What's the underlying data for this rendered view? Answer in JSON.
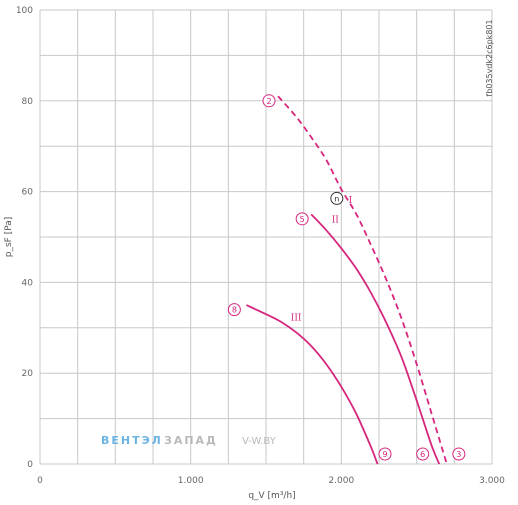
{
  "chart_data": {
    "type": "line",
    "xlabel": "q_V [m³/h]",
    "ylabel": "p_sF [Pa]",
    "xlim": [
      0,
      3000
    ],
    "ylim": [
      0,
      100
    ],
    "x_ticks": [
      {
        "value": 0,
        "label": "0"
      },
      {
        "value": 1000,
        "label": "1.000"
      },
      {
        "value": 2000,
        "label": "2.000"
      },
      {
        "value": 3000,
        "label": "3.000"
      }
    ],
    "y_ticks": [
      {
        "value": 0,
        "label": "0"
      },
      {
        "value": 20,
        "label": "20"
      },
      {
        "value": 40,
        "label": "40"
      },
      {
        "value": 60,
        "label": "60"
      },
      {
        "value": 80,
        "label": "80"
      },
      {
        "value": 100,
        "label": "100"
      }
    ],
    "grid": true,
    "series": [
      {
        "name": "I",
        "style": "dashed",
        "color": "#d6267e",
        "x": [
          1580,
          1700,
          1800,
          1900,
          2000,
          2100,
          2200,
          2300,
          2400,
          2500,
          2600,
          2700
        ],
        "y": [
          81,
          76.5,
          72,
          67,
          60.5,
          55,
          48,
          40.5,
          32,
          22,
          11,
          0
        ]
      },
      {
        "name": "II",
        "style": "solid",
        "color": "#d6267e",
        "x": [
          1800,
          1900,
          2000,
          2100,
          2200,
          2300,
          2400,
          2500,
          2600,
          2650
        ],
        "y": [
          55,
          51.5,
          47.5,
          43,
          37.5,
          31,
          23.5,
          14,
          4,
          0
        ]
      },
      {
        "name": "III",
        "style": "solid",
        "color": "#d6267e",
        "x": [
          1370,
          1500,
          1600,
          1700,
          1800,
          1900,
          2000,
          2100,
          2200,
          2240
        ],
        "y": [
          35,
          33,
          31.3,
          29,
          26,
          22,
          17,
          11,
          3.5,
          0
        ]
      }
    ],
    "markers": [
      {
        "label": "2",
        "x": 1520,
        "y": 80
      },
      {
        "label": "n",
        "x": 1970,
        "y": 58.5
      },
      {
        "label": "5",
        "x": 1740,
        "y": 54
      },
      {
        "label": "8",
        "x": 1290,
        "y": 34
      },
      {
        "label": "9",
        "x": 2290,
        "y": 2.2
      },
      {
        "label": "6",
        "x": 2540,
        "y": 2.2
      },
      {
        "label": "3",
        "x": 2780,
        "y": 2.2
      }
    ],
    "roman_labels": [
      {
        "label": "I",
        "x": 2060,
        "y": 58.2
      },
      {
        "label": "II",
        "x": 1960,
        "y": 53.8
      },
      {
        "label": "III",
        "x": 1700,
        "y": 32.3
      }
    ]
  },
  "reference_code": "fb035vdk2c6pk801",
  "watermark": {
    "part1": "ВЕНТЭЛ",
    "part2": "ЗАПАД",
    "part3": "V-W.BY"
  },
  "colors": {
    "curve": "#d6267e",
    "grid": "#c8c8c8",
    "watermark_blue": "#6cb4e4",
    "watermark_grey": "#b9b9b9"
  }
}
